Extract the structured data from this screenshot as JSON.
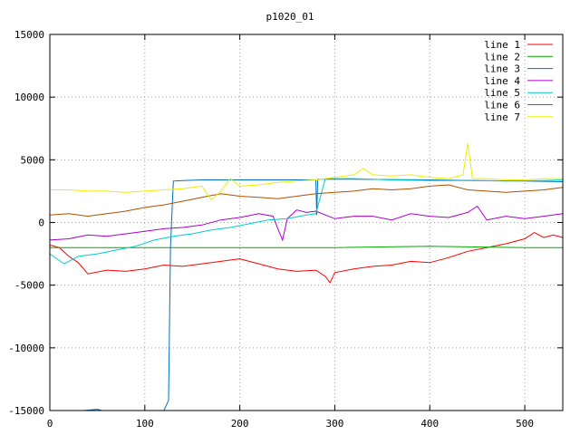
{
  "chart_data": {
    "type": "line",
    "title": "p1020_01",
    "xlabel": "",
    "ylabel": "",
    "xlim": [
      0,
      540
    ],
    "ylim": [
      -15000,
      15000
    ],
    "x_ticks": [
      0,
      100,
      200,
      300,
      400,
      500
    ],
    "y_ticks": [
      -15000,
      -10000,
      -5000,
      0,
      5000,
      10000,
      15000
    ],
    "grid": true,
    "legend_position": "top-right",
    "series": [
      {
        "name": "line 1",
        "color": "#ff0000",
        "points": [
          [
            0,
            -1800
          ],
          [
            10,
            -2000
          ],
          [
            20,
            -2700
          ],
          [
            30,
            -3200
          ],
          [
            40,
            -4100
          ],
          [
            60,
            -3800
          ],
          [
            80,
            -3900
          ],
          [
            100,
            -3700
          ],
          [
            120,
            -3400
          ],
          [
            140,
            -3500
          ],
          [
            160,
            -3300
          ],
          [
            180,
            -3100
          ],
          [
            200,
            -2900
          ],
          [
            220,
            -3300
          ],
          [
            240,
            -3700
          ],
          [
            260,
            -3900
          ],
          [
            280,
            -3800
          ],
          [
            290,
            -4300
          ],
          [
            295,
            -4800
          ],
          [
            300,
            -4000
          ],
          [
            320,
            -3700
          ],
          [
            340,
            -3500
          ],
          [
            360,
            -3400
          ],
          [
            380,
            -3100
          ],
          [
            400,
            -3200
          ],
          [
            420,
            -2800
          ],
          [
            440,
            -2300
          ],
          [
            460,
            -2000
          ],
          [
            480,
            -1700
          ],
          [
            500,
            -1300
          ],
          [
            510,
            -800
          ],
          [
            520,
            -1200
          ],
          [
            530,
            -1000
          ],
          [
            540,
            -1200
          ]
        ]
      },
      {
        "name": "line 2",
        "color": "#00aa00",
        "points": [
          [
            0,
            -2000
          ],
          [
            100,
            -2000
          ],
          [
            200,
            -2000
          ],
          [
            300,
            -2000
          ],
          [
            400,
            -1900
          ],
          [
            500,
            -2000
          ],
          [
            540,
            -2000
          ]
        ]
      },
      {
        "name": "line 3",
        "color": "#0070c0",
        "points": [
          [
            0,
            -15500
          ],
          [
            30,
            -15000
          ],
          [
            35,
            -15200
          ],
          [
            50,
            -14900
          ],
          [
            55,
            -15300
          ],
          [
            120,
            -15300
          ],
          [
            125,
            -14200
          ],
          [
            127,
            -2000
          ],
          [
            130,
            3300
          ],
          [
            140,
            3350
          ],
          [
            160,
            3400
          ],
          [
            200,
            3400
          ],
          [
            250,
            3400
          ],
          [
            280,
            3400
          ],
          [
            281,
            600
          ],
          [
            282,
            3450
          ],
          [
            320,
            3450
          ],
          [
            400,
            3400
          ],
          [
            450,
            3350
          ],
          [
            500,
            3300
          ],
          [
            540,
            3250
          ]
        ]
      },
      {
        "name": "line 4",
        "color": "#aa00cc",
        "points": [
          [
            0,
            -1400
          ],
          [
            20,
            -1300
          ],
          [
            40,
            -1000
          ],
          [
            60,
            -1100
          ],
          [
            80,
            -900
          ],
          [
            100,
            -700
          ],
          [
            120,
            -500
          ],
          [
            140,
            -400
          ],
          [
            160,
            -200
          ],
          [
            180,
            200
          ],
          [
            200,
            400
          ],
          [
            220,
            700
          ],
          [
            235,
            500
          ],
          [
            240,
            -500
          ],
          [
            245,
            -1400
          ],
          [
            250,
            300
          ],
          [
            260,
            1000
          ],
          [
            270,
            800
          ],
          [
            280,
            900
          ],
          [
            300,
            300
          ],
          [
            320,
            500
          ],
          [
            340,
            500
          ],
          [
            360,
            200
          ],
          [
            380,
            700
          ],
          [
            400,
            500
          ],
          [
            420,
            400
          ],
          [
            440,
            800
          ],
          [
            450,
            1300
          ],
          [
            460,
            200
          ],
          [
            480,
            500
          ],
          [
            500,
            300
          ],
          [
            520,
            500
          ],
          [
            540,
            700
          ]
        ]
      },
      {
        "name": "line 5",
        "color": "#00cccc",
        "points": [
          [
            0,
            -2500
          ],
          [
            15,
            -3300
          ],
          [
            30,
            -2700
          ],
          [
            50,
            -2500
          ],
          [
            70,
            -2200
          ],
          [
            90,
            -1900
          ],
          [
            110,
            -1400
          ],
          [
            130,
            -1100
          ],
          [
            150,
            -900
          ],
          [
            170,
            -600
          ],
          [
            190,
            -400
          ],
          [
            210,
            -100
          ],
          [
            230,
            200
          ],
          [
            250,
            300
          ],
          [
            270,
            600
          ],
          [
            280,
            700
          ],
          [
            290,
            3500
          ],
          [
            320,
            3500
          ],
          [
            360,
            3400
          ],
          [
            400,
            3350
          ],
          [
            440,
            3350
          ],
          [
            480,
            3300
          ],
          [
            520,
            3350
          ],
          [
            540,
            3400
          ]
        ]
      },
      {
        "name": "line 6",
        "color": "#b05000",
        "points": [
          [
            0,
            600
          ],
          [
            20,
            700
          ],
          [
            40,
            500
          ],
          [
            60,
            700
          ],
          [
            80,
            900
          ],
          [
            100,
            1200
          ],
          [
            120,
            1400
          ],
          [
            140,
            1700
          ],
          [
            160,
            2000
          ],
          [
            180,
            2300
          ],
          [
            200,
            2100
          ],
          [
            220,
            2000
          ],
          [
            240,
            1900
          ],
          [
            260,
            2100
          ],
          [
            280,
            2300
          ],
          [
            300,
            2400
          ],
          [
            320,
            2500
          ],
          [
            340,
            2700
          ],
          [
            360,
            2600
          ],
          [
            380,
            2700
          ],
          [
            400,
            2900
          ],
          [
            420,
            3000
          ],
          [
            440,
            2600
          ],
          [
            460,
            2500
          ],
          [
            480,
            2400
          ],
          [
            500,
            2500
          ],
          [
            520,
            2600
          ],
          [
            540,
            2800
          ]
        ]
      },
      {
        "name": "line 7",
        "color": "#eeee00",
        "points": [
          [
            0,
            2600
          ],
          [
            20,
            2600
          ],
          [
            40,
            2500
          ],
          [
            60,
            2500
          ],
          [
            80,
            2400
          ],
          [
            100,
            2500
          ],
          [
            120,
            2600
          ],
          [
            140,
            2700
          ],
          [
            160,
            2900
          ],
          [
            170,
            1800
          ],
          [
            180,
            2500
          ],
          [
            190,
            3500
          ],
          [
            200,
            2900
          ],
          [
            220,
            3000
          ],
          [
            240,
            3200
          ],
          [
            260,
            3300
          ],
          [
            280,
            3400
          ],
          [
            300,
            3600
          ],
          [
            320,
            3800
          ],
          [
            330,
            4300
          ],
          [
            340,
            3800
          ],
          [
            360,
            3700
          ],
          [
            380,
            3800
          ],
          [
            400,
            3600
          ],
          [
            420,
            3500
          ],
          [
            435,
            3800
          ],
          [
            440,
            6300
          ],
          [
            445,
            3500
          ],
          [
            460,
            3500
          ],
          [
            480,
            3400
          ],
          [
            500,
            3400
          ],
          [
            520,
            3500
          ],
          [
            540,
            3500
          ]
        ]
      }
    ]
  }
}
